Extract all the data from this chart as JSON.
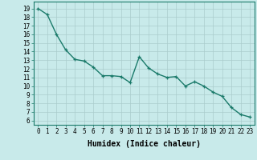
{
  "x_values": [
    0,
    1,
    2,
    3,
    4,
    5,
    6,
    7,
    8,
    9,
    10,
    11,
    12,
    13,
    14,
    15,
    16,
    17,
    18,
    19,
    20,
    21,
    22,
    23
  ],
  "y_values": [
    19.0,
    18.3,
    16.0,
    14.2,
    13.1,
    12.9,
    12.2,
    11.2,
    11.2,
    11.1,
    10.4,
    13.4,
    12.1,
    11.4,
    11.0,
    11.1,
    10.0,
    10.5,
    10.0,
    9.3,
    8.8,
    7.5,
    6.7,
    6.4
  ],
  "line_color": "#1a7a6a",
  "marker_color": "#1a7a6a",
  "bg_color": "#c8eaea",
  "grid_color": "#aacccc",
  "xlabel": "Humidex (Indice chaleur)",
  "xlim": [
    -0.5,
    23.5
  ],
  "ylim": [
    5.5,
    19.8
  ],
  "yticks": [
    6,
    7,
    8,
    9,
    10,
    11,
    12,
    13,
    14,
    15,
    16,
    17,
    18,
    19
  ],
  "xticks": [
    0,
    1,
    2,
    3,
    4,
    5,
    6,
    7,
    8,
    9,
    10,
    11,
    12,
    13,
    14,
    15,
    16,
    17,
    18,
    19,
    20,
    21,
    22,
    23
  ],
  "xlabel_fontsize": 7,
  "tick_fontsize": 5.5,
  "line_width": 1.0,
  "marker_size": 3.5
}
